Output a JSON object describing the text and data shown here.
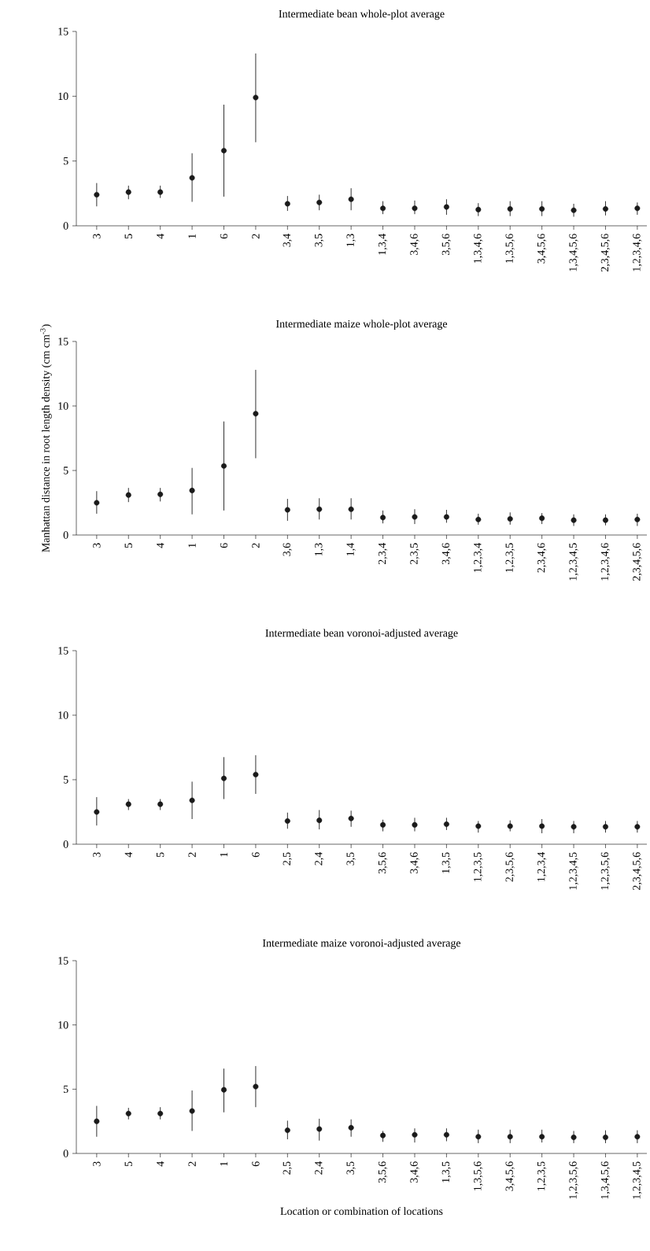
{
  "chart_data": [
    {
      "type": "scatter",
      "title": "Intermediate bean whole-plot average",
      "marker": "circle",
      "color": "#1a1a1a",
      "categories": [
        "3",
        "5",
        "4",
        "1",
        "6",
        "2",
        "3,4",
        "3,5",
        "1,3",
        "1,3,4",
        "3,4,6",
        "3,5,6",
        "1,3,4,6",
        "1,3,5,6",
        "3,4,5,6",
        "1,3,4,5,6",
        "2,3,4,5,6",
        "1,2,3,4,6"
      ],
      "values": [
        2.4,
        2.6,
        2.6,
        3.7,
        5.8,
        9.9,
        1.7,
        1.8,
        2.05,
        1.35,
        1.35,
        1.45,
        1.25,
        1.3,
        1.3,
        1.2,
        1.3,
        1.35
      ],
      "errors": [
        [
          1.5,
          3.3
        ],
        [
          2.05,
          3.1
        ],
        [
          2.15,
          3.1
        ],
        [
          1.85,
          5.6
        ],
        [
          2.25,
          9.35
        ],
        [
          6.45,
          13.3
        ],
        [
          1.15,
          2.3
        ],
        [
          1.2,
          2.4
        ],
        [
          1.2,
          2.9
        ],
        [
          0.9,
          1.9
        ],
        [
          0.9,
          1.95
        ],
        [
          0.85,
          2.05
        ],
        [
          0.75,
          1.75
        ],
        [
          0.75,
          1.9
        ],
        [
          0.75,
          1.9
        ],
        [
          0.7,
          1.7
        ],
        [
          0.8,
          1.9
        ],
        [
          0.85,
          1.8
        ]
      ],
      "ylim": [
        0,
        15
      ],
      "yticks": [
        0,
        5,
        10,
        15
      ]
    },
    {
      "type": "scatter",
      "title": "Intermediate maize whole-plot average",
      "marker": "circle",
      "color": "#1a1a1a",
      "ylabel": "Manhattan distance in root length density (cm cm$^{-3}$)",
      "categories": [
        "3",
        "5",
        "4",
        "1",
        "6",
        "2",
        "3,6",
        "1,3",
        "1,4",
        "2,3,4",
        "2,3,5",
        "3,4,6",
        "1,2,3,4",
        "1,2,3,5",
        "2,3,4,6",
        "1,2,3,4,5",
        "1,2,3,4,6",
        "2,3,4,5,6"
      ],
      "values": [
        2.5,
        3.1,
        3.15,
        3.45,
        5.35,
        9.4,
        1.95,
        2.0,
        2.0,
        1.35,
        1.4,
        1.4,
        1.2,
        1.25,
        1.3,
        1.15,
        1.15,
        1.2
      ],
      "errors": [
        [
          1.65,
          3.4
        ],
        [
          2.55,
          3.65
        ],
        [
          2.6,
          3.65
        ],
        [
          1.6,
          5.2
        ],
        [
          1.9,
          8.8
        ],
        [
          5.95,
          12.8
        ],
        [
          1.1,
          2.8
        ],
        [
          1.2,
          2.85
        ],
        [
          1.2,
          2.85
        ],
        [
          0.9,
          1.9
        ],
        [
          0.85,
          2.0
        ],
        [
          0.95,
          1.95
        ],
        [
          0.8,
          1.65
        ],
        [
          0.8,
          1.75
        ],
        [
          0.85,
          1.7
        ],
        [
          0.7,
          1.6
        ],
        [
          0.75,
          1.6
        ],
        [
          0.7,
          1.65
        ]
      ],
      "ylim": [
        0,
        15
      ],
      "yticks": [
        0,
        5,
        10,
        15
      ]
    },
    {
      "type": "scatter",
      "title": "Intermediate bean voronoi-adjusted average",
      "marker": "circle",
      "color": "#1a1a1a",
      "categories": [
        "3",
        "4",
        "5",
        "2",
        "1",
        "6",
        "2,5",
        "2,4",
        "3,5",
        "3,5,6",
        "3,4,6",
        "1,3,5",
        "1,2,3,5",
        "2,3,5,6",
        "1,2,3,4",
        "1,2,3,4,5",
        "1,2,3,5,6",
        "2,3,4,5,6"
      ],
      "values": [
        2.5,
        3.1,
        3.1,
        3.4,
        5.1,
        5.4,
        1.8,
        1.85,
        2.0,
        1.5,
        1.5,
        1.55,
        1.4,
        1.4,
        1.4,
        1.35,
        1.35,
        1.35
      ],
      "errors": [
        [
          1.45,
          3.65
        ],
        [
          2.65,
          3.5
        ],
        [
          2.65,
          3.5
        ],
        [
          1.95,
          4.85
        ],
        [
          3.5,
          6.75
        ],
        [
          3.9,
          6.9
        ],
        [
          1.2,
          2.45
        ],
        [
          1.15,
          2.65
        ],
        [
          1.35,
          2.6
        ],
        [
          1.0,
          1.9
        ],
        [
          1.0,
          2.05
        ],
        [
          1.1,
          2.05
        ],
        [
          0.9,
          1.8
        ],
        [
          1.0,
          1.85
        ],
        [
          0.85,
          1.95
        ],
        [
          0.85,
          1.8
        ],
        [
          0.9,
          1.8
        ],
        [
          0.9,
          1.8
        ]
      ],
      "ylim": [
        0,
        15
      ],
      "yticks": [
        0,
        5,
        10,
        15
      ]
    },
    {
      "type": "scatter",
      "title": "Intermediate maize voronoi-adjusted average",
      "marker": "circle",
      "color": "#1a1a1a",
      "xlabel": "Location or combination of locations",
      "categories": [
        "3",
        "5",
        "4",
        "2",
        "1",
        "6",
        "2,5",
        "2,4",
        "3,5",
        "3,5,6",
        "3,4,6",
        "1,3,5",
        "1,3,5,6",
        "3,4,5,6",
        "1,2,3,5",
        "1,2,3,5,6",
        "1,3,4,5,6",
        "1,2,3,4,5"
      ],
      "values": [
        2.5,
        3.1,
        3.1,
        3.3,
        4.95,
        5.2,
        1.8,
        1.9,
        2.0,
        1.4,
        1.45,
        1.45,
        1.3,
        1.3,
        1.3,
        1.25,
        1.25,
        1.3
      ],
      "errors": [
        [
          1.3,
          3.7
        ],
        [
          2.65,
          3.55
        ],
        [
          2.65,
          3.6
        ],
        [
          1.75,
          4.9
        ],
        [
          3.2,
          6.6
        ],
        [
          3.6,
          6.8
        ],
        [
          1.1,
          2.55
        ],
        [
          1.0,
          2.7
        ],
        [
          1.3,
          2.65
        ],
        [
          0.9,
          1.75
        ],
        [
          0.85,
          1.95
        ],
        [
          0.95,
          1.95
        ],
        [
          0.8,
          1.85
        ],
        [
          0.8,
          1.85
        ],
        [
          0.85,
          1.85
        ],
        [
          0.8,
          1.75
        ],
        [
          0.8,
          1.8
        ],
        [
          0.8,
          1.8
        ]
      ],
      "ylim": [
        0,
        15
      ],
      "yticks": [
        0,
        5,
        10,
        15
      ]
    }
  ]
}
